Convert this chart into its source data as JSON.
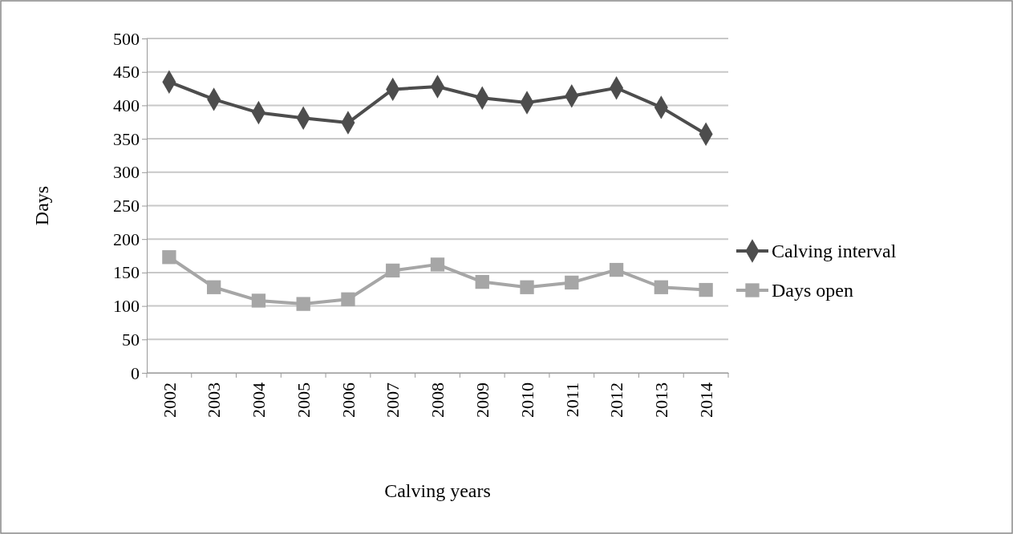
{
  "chart_data": {
    "type": "line",
    "xlabel": "Calving years",
    "ylabel": "Days",
    "categories": [
      "2002",
      "2003",
      "2004",
      "2005",
      "2006",
      "2007",
      "2008",
      "2009",
      "2010",
      "2011",
      "2012",
      "2013",
      "2014"
    ],
    "series": [
      {
        "name": "Calving interval",
        "color": "#4d4d4d",
        "marker": "diamond",
        "values": [
          435,
          409,
          389,
          381,
          374,
          424,
          428,
          411,
          404,
          414,
          426,
          397,
          357
        ]
      },
      {
        "name": "Days open",
        "color": "#a6a6a6",
        "marker": "square",
        "values": [
          173,
          128,
          108,
          103,
          110,
          153,
          162,
          136,
          128,
          135,
          154,
          128,
          124
        ]
      }
    ],
    "ylim": [
      0,
      500
    ],
    "yticks": [
      0,
      50,
      100,
      150,
      200,
      250,
      300,
      350,
      400,
      450,
      500
    ],
    "grid": "y",
    "legend": "right"
  }
}
